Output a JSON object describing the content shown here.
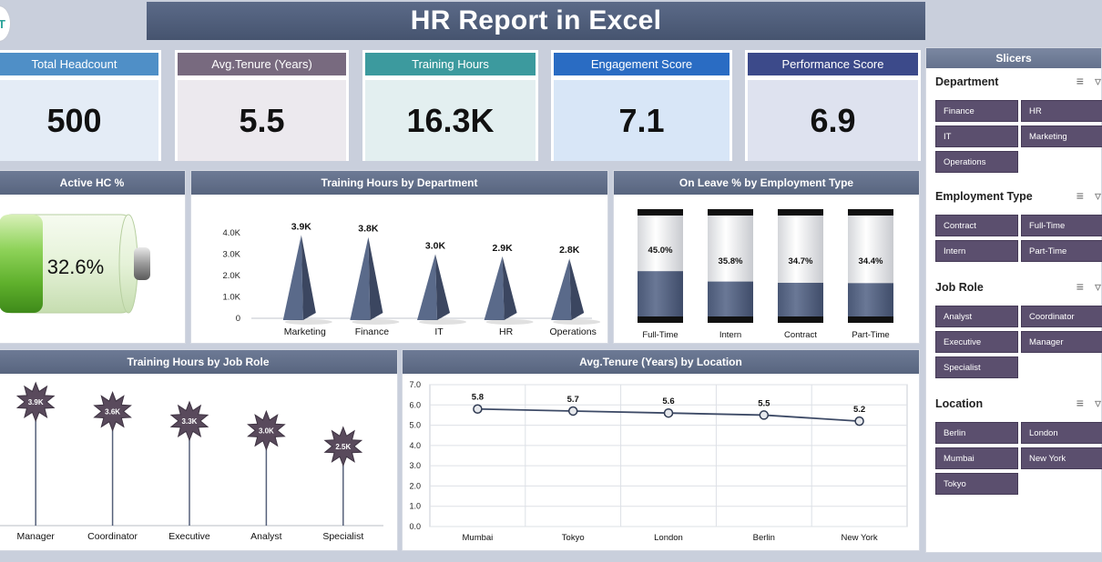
{
  "title": "HR Report in Excel",
  "logo_text": "T",
  "kpis": [
    {
      "label": "Total Headcount",
      "value": "500",
      "head_color": "#4f8fc7",
      "body_color": "#e4ecf6"
    },
    {
      "label": "Avg.Tenure (Years)",
      "value": "5.5",
      "head_color": "#786a7f",
      "body_color": "#ece9ee"
    },
    {
      "label": "Training Hours",
      "value": "16.3K",
      "head_color": "#3c9a9e",
      "body_color": "#e3eff0"
    },
    {
      "label": "Engagement Score",
      "value": "7.1",
      "head_color": "#2a6cc3",
      "body_color": "#d8e6f7"
    },
    {
      "label": "Performance Score",
      "value": "6.9",
      "head_color": "#3c4a8a",
      "body_color": "#dee2ef"
    }
  ],
  "active_hc": {
    "title": "Active HC %",
    "value_label": "32.6%",
    "value": 32.6
  },
  "training_by_dept": {
    "title": "Training Hours by Department",
    "chart_data": {
      "type": "bar",
      "categories": [
        "Marketing",
        "Finance",
        "IT",
        "HR",
        "Operations"
      ],
      "values": [
        3900,
        3800,
        3000,
        2900,
        2800
      ],
      "data_labels": [
        "3.9K",
        "3.8K",
        "3.0K",
        "2.9K",
        "2.8K"
      ],
      "yticks": [
        "0",
        "1.0K",
        "2.0K",
        "3.0K",
        "4.0K"
      ],
      "ylim": [
        0,
        4000
      ],
      "color": "#5a6a8a"
    }
  },
  "on_leave": {
    "title": "On Leave % by Employment Type",
    "chart_data": {
      "type": "bar",
      "categories": [
        "Full-Time",
        "Intern",
        "Contract",
        "Part-Time"
      ],
      "values": [
        45.0,
        35.8,
        34.7,
        34.4
      ],
      "data_labels": [
        "45.0%",
        "35.8%",
        "34.7%",
        "34.4%"
      ],
      "ylim": [
        0,
        100
      ]
    }
  },
  "training_by_role": {
    "title": "Training Hours by Job Role",
    "chart_data": {
      "type": "bar",
      "categories": [
        "Manager",
        "Coordinator",
        "Executive",
        "Analyst",
        "Specialist"
      ],
      "values": [
        3900,
        3600,
        3300,
        3000,
        2500
      ],
      "data_labels": [
        "3.9K",
        "3.6K",
        "3.3K",
        "3.0K",
        "2.5K"
      ],
      "ylim": [
        0,
        4500
      ]
    }
  },
  "tenure_by_location": {
    "title": "Avg.Tenure (Years) by Location",
    "chart_data": {
      "type": "line",
      "categories": [
        "Mumbai",
        "Tokyo",
        "London",
        "Berlin",
        "New York"
      ],
      "values": [
        5.8,
        5.7,
        5.6,
        5.5,
        5.2
      ],
      "data_labels": [
        "5.8",
        "5.7",
        "5.6",
        "5.5",
        "5.2"
      ],
      "yticks": [
        "0.0",
        "1.0",
        "2.0",
        "3.0",
        "4.0",
        "5.0",
        "6.0",
        "7.0"
      ],
      "ylim": [
        0,
        7
      ]
    }
  },
  "slicers": {
    "title": "Slicers",
    "groups": [
      {
        "name": "Department",
        "items": [
          "Finance",
          "HR",
          "IT",
          "Marketing",
          "Operations"
        ]
      },
      {
        "name": "Employment Type",
        "items": [
          "Contract",
          "Full-Time",
          "Intern",
          "Part-Time"
        ]
      },
      {
        "name": "Job Role",
        "items": [
          "Analyst",
          "Coordinator",
          "Executive",
          "Manager",
          "Specialist"
        ]
      },
      {
        "name": "Location",
        "items": [
          "Berlin",
          "London",
          "Mumbai",
          "New York",
          "Tokyo"
        ]
      }
    ],
    "icons": [
      "multi-select-icon",
      "clear-filter-icon"
    ]
  }
}
